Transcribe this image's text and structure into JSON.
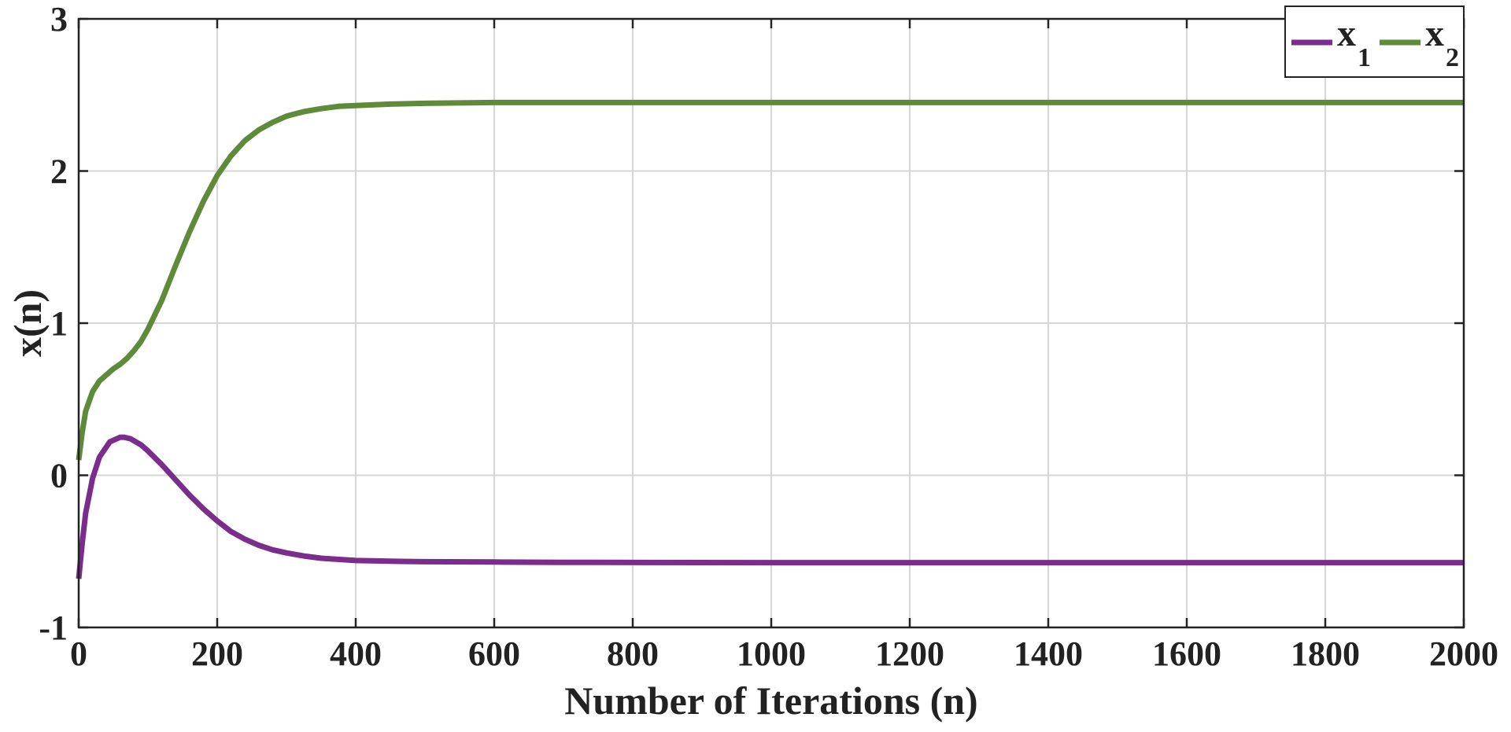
{
  "chart_data": {
    "type": "line",
    "title": "",
    "xlabel": "Number of Iterations (n)",
    "ylabel": "x(n)",
    "xlim": [
      0,
      2000
    ],
    "ylim": [
      -1,
      3
    ],
    "xticks": [
      0,
      200,
      400,
      600,
      800,
      1000,
      1200,
      1400,
      1600,
      1800,
      2000
    ],
    "yticks": [
      -1,
      0,
      1,
      2,
      3
    ],
    "xtick_labels": [
      "0",
      "200",
      "400",
      "600",
      "800",
      "1000",
      "1200",
      "1400",
      "1600",
      "1800",
      "2000"
    ],
    "ytick_labels": [
      "-1",
      "0",
      "1",
      "2",
      "3"
    ],
    "grid": true,
    "legend_position": "top-right",
    "series": [
      {
        "name": "x",
        "subscript": "1",
        "color": "#7B2D8E",
        "x": [
          0,
          5,
          10,
          20,
          30,
          45,
          60,
          65,
          75,
          90,
          100,
          120,
          140,
          160,
          180,
          200,
          220,
          240,
          260,
          280,
          300,
          325,
          350,
          400,
          450,
          500,
          600,
          700,
          800,
          1000,
          1200,
          1400,
          1600,
          1800,
          2000
        ],
        "y": [
          -0.68,
          -0.45,
          -0.25,
          -0.02,
          0.12,
          0.22,
          0.25,
          0.25,
          0.24,
          0.2,
          0.16,
          0.07,
          -0.03,
          -0.13,
          -0.22,
          -0.3,
          -0.37,
          -0.42,
          -0.46,
          -0.49,
          -0.51,
          -0.53,
          -0.545,
          -0.56,
          -0.565,
          -0.568,
          -0.57,
          -0.572,
          -0.573,
          -0.574,
          -0.574,
          -0.574,
          -0.574,
          -0.574,
          -0.574
        ]
      },
      {
        "name": "x",
        "subscript": "2",
        "color": "#5E8A3A",
        "x": [
          0,
          5,
          10,
          20,
          30,
          40,
          50,
          60,
          70,
          80,
          90,
          100,
          120,
          140,
          160,
          180,
          200,
          220,
          240,
          260,
          280,
          300,
          325,
          350,
          375,
          400,
          450,
          500,
          600,
          700,
          800,
          1000,
          1200,
          1400,
          1600,
          1800,
          2000
        ],
        "y": [
          0.1,
          0.28,
          0.42,
          0.55,
          0.62,
          0.66,
          0.7,
          0.73,
          0.77,
          0.82,
          0.88,
          0.96,
          1.15,
          1.38,
          1.6,
          1.8,
          1.97,
          2.1,
          2.2,
          2.27,
          2.32,
          2.36,
          2.39,
          2.41,
          2.425,
          2.43,
          2.44,
          2.445,
          2.45,
          2.45,
          2.45,
          2.45,
          2.45,
          2.45,
          2.45,
          2.45,
          2.45
        ]
      }
    ]
  }
}
